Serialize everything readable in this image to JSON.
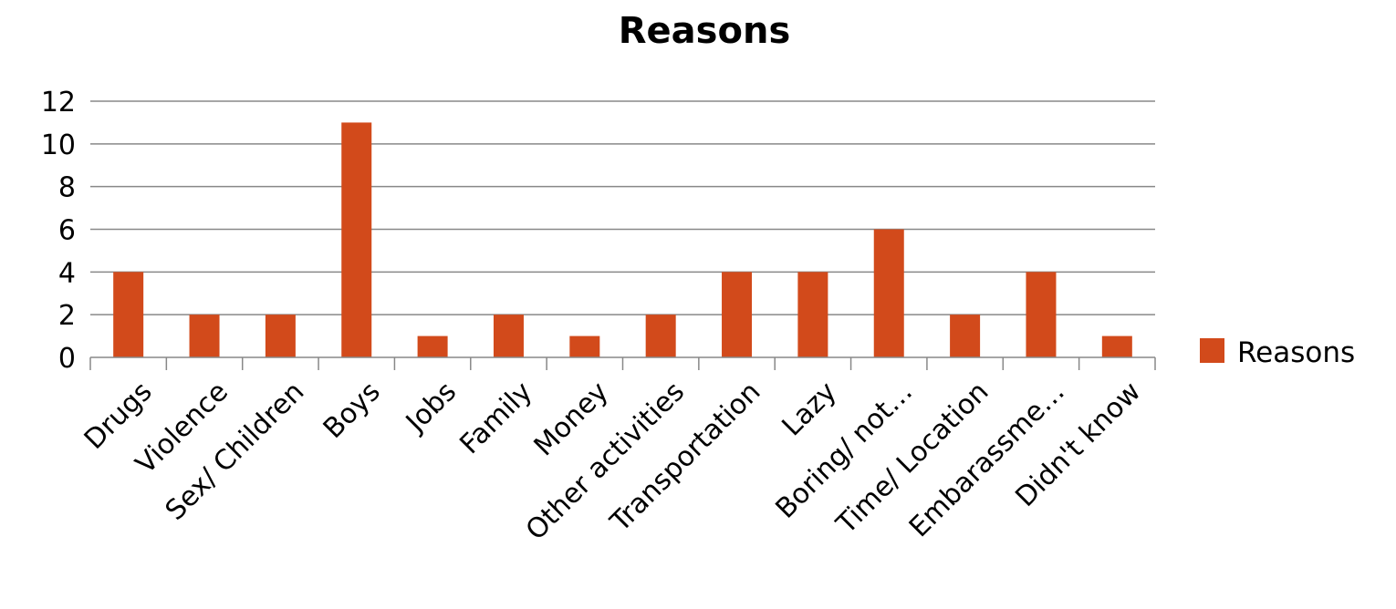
{
  "chart_data": {
    "type": "bar",
    "title": "Reasons",
    "xlabel": "",
    "ylabel": "",
    "categories": [
      "Drugs",
      "Violence",
      "Sex/ Children",
      "Boys",
      "Jobs",
      "Family",
      "Money",
      "Other activities",
      "Transportation",
      "Lazy",
      "Boring/ not…",
      "Time/ Location",
      "Embarassme…",
      "Didn't know"
    ],
    "series": [
      {
        "name": "Reasons",
        "values": [
          4,
          2,
          2,
          11,
          1,
          2,
          1,
          2,
          4,
          4,
          6,
          2,
          4,
          1
        ],
        "color": "#D24A1B"
      }
    ],
    "ylim": [
      0,
      12
    ],
    "yticks": [
      "0",
      "2",
      "4",
      "6",
      "8",
      "10",
      "12"
    ],
    "grid": true,
    "legend_position": "right",
    "colors": {
      "bar": "#D24A1B",
      "grid": "#888888",
      "axis": "#888888"
    }
  }
}
